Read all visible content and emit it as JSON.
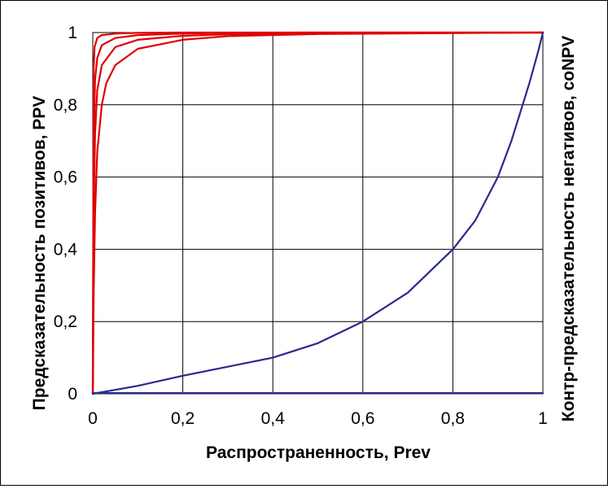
{
  "chart_data": {
    "type": "line",
    "title": "",
    "xlabel": "Распространенность, Prev",
    "ylabel_left": "Предсказательность позитивов, PPV",
    "ylabel_right": "Контр-предсказательность негативов, coNPV",
    "xlim": [
      0,
      1
    ],
    "ylim": [
      0,
      1
    ],
    "x_ticks": [
      "0",
      "0,2",
      "0,4",
      "0,6",
      "0,8",
      "1"
    ],
    "y_ticks": [
      "0",
      "0,2",
      "0,4",
      "0,6",
      "0,8",
      "1"
    ],
    "grid": true,
    "colors": {
      "ppv": "#e00000",
      "conpv": "#2a2a8c",
      "grid": "#000000"
    },
    "series": [
      {
        "group": "ppv",
        "x": [
          0,
          0.002,
          0.005,
          0.01,
          0.02,
          0.05,
          0.1,
          0.2,
          0.3,
          0.5,
          0.7,
          1
        ],
        "y": [
          0,
          0.7,
          0.87,
          0.93,
          0.965,
          0.985,
          0.993,
          0.997,
          0.999,
          1,
          1,
          1
        ]
      },
      {
        "group": "ppv",
        "x": [
          0,
          0.002,
          0.005,
          0.01,
          0.02,
          0.05,
          0.1,
          0.2,
          0.3,
          0.5,
          0.7,
          1
        ],
        "y": [
          0,
          0.5,
          0.72,
          0.84,
          0.91,
          0.96,
          0.98,
          0.991,
          0.995,
          0.998,
          0.999,
          1
        ]
      },
      {
        "group": "ppv",
        "x": [
          0,
          0.002,
          0.005,
          0.01,
          0.02,
          0.03,
          0.05,
          0.1,
          0.2,
          0.3,
          0.5,
          1
        ],
        "y": [
          0,
          0.28,
          0.5,
          0.67,
          0.8,
          0.86,
          0.91,
          0.955,
          0.98,
          0.99,
          0.996,
          1
        ]
      },
      {
        "group": "ppv",
        "x": [
          0,
          0.002,
          0.004,
          0.01,
          0.02,
          0.05,
          0.1,
          0.2,
          0.5,
          1
        ],
        "y": [
          0,
          0.9,
          0.96,
          0.985,
          0.993,
          0.997,
          0.999,
          1,
          1,
          1
        ]
      },
      {
        "group": "conpv",
        "x": [
          0,
          0.1,
          0.2,
          0.3,
          0.4,
          0.5,
          0.6,
          0.7,
          0.8,
          0.85,
          0.9,
          0.93,
          0.95,
          0.97,
          0.99,
          1
        ],
        "y": [
          0,
          0.022,
          0.05,
          0.075,
          0.1,
          0.14,
          0.2,
          0.28,
          0.4,
          0.48,
          0.6,
          0.7,
          0.78,
          0.86,
          0.95,
          1
        ]
      },
      {
        "group": "conpv",
        "x": [
          0,
          1
        ],
        "y": [
          0.002,
          0.002
        ]
      }
    ]
  }
}
